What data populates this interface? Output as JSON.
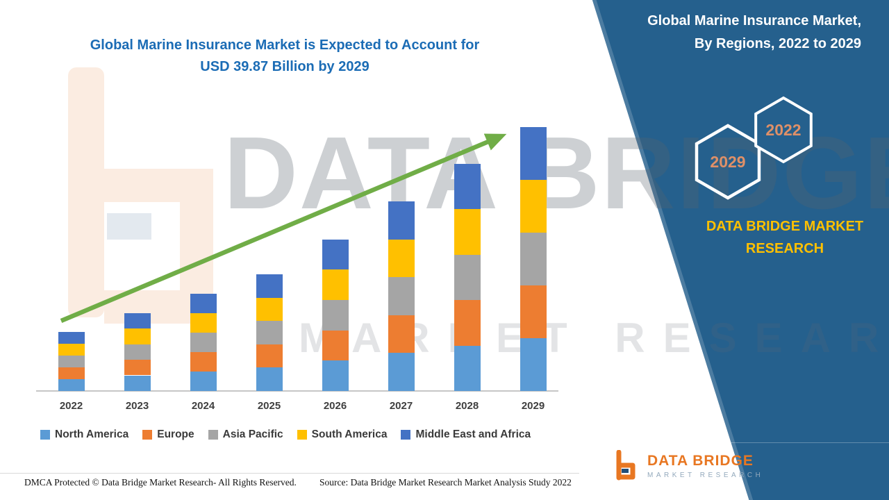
{
  "header": {
    "line1": "Global Marine Insurance Market is Expected to Account for",
    "line2": "USD 39.87 Billion by 2029",
    "title_color": "#1B6CB5"
  },
  "side_panel": {
    "title_line1": "Global Marine Insurance Market,",
    "title_line2": "By Regions, 2022 to 2029",
    "hexagons": [
      {
        "label": "2029"
      },
      {
        "label": "2022"
      }
    ],
    "brand_line1": "DATA BRIDGE MARKET",
    "brand_line2": "RESEARCH",
    "background_color": "#25608D",
    "brand_color": "#FFC000",
    "hexagon_text_color": "#DF9068"
  },
  "brand_logo": {
    "name": "DATA BRIDGE",
    "subtitle": "MARKET RESEARCH"
  },
  "watermark": {
    "line1": "DATA BRIDGE",
    "line2": "MARKET RESEARCH"
  },
  "footer": {
    "left": "DMCA Protected © Data Bridge Market Research- All Rights Reserved.",
    "right": "Source: Data Bridge Market Research Market Analysis Study 2022"
  },
  "chart_data": {
    "type": "bar",
    "stacked": true,
    "title": "Global Marine Insurance Market is Expected to Account for USD 39.87 Billion by 2029",
    "unit": "USD Billion",
    "categories": [
      "2022",
      "2023",
      "2024",
      "2025",
      "2026",
      "2027",
      "2028",
      "2029"
    ],
    "series": [
      {
        "name": "North America",
        "color": "#5B9BD5",
        "values": [
          1.78,
          2.36,
          2.94,
          3.52,
          4.58,
          5.72,
          6.86,
          7.97
        ]
      },
      {
        "name": "Europe",
        "color": "#ED7D31",
        "values": [
          1.78,
          2.36,
          2.94,
          3.52,
          4.58,
          5.72,
          6.86,
          7.97
        ]
      },
      {
        "name": "Asia Pacific",
        "color": "#A5A5A5",
        "values": [
          1.78,
          2.36,
          2.94,
          3.52,
          4.58,
          5.72,
          6.86,
          7.97
        ]
      },
      {
        "name": "South America",
        "color": "#FFC000",
        "values": [
          1.78,
          2.36,
          2.94,
          3.52,
          4.58,
          5.72,
          6.86,
          7.98
        ]
      },
      {
        "name": "Middle East and Africa",
        "color": "#4472C4",
        "values": [
          1.78,
          2.36,
          2.94,
          3.52,
          4.58,
          5.72,
          6.86,
          7.98
        ]
      }
    ],
    "totals_usd_billion": [
      8.9,
      11.8,
      14.7,
      17.6,
      22.9,
      28.6,
      34.3,
      39.87
    ],
    "ylim": [
      0,
      40
    ],
    "xlabel": "",
    "ylabel": "",
    "gridlines": false,
    "legend_position": "bottom",
    "trend_arrow": {
      "color": "#70AD47",
      "from_year": "2022",
      "to_year": "2029"
    }
  }
}
